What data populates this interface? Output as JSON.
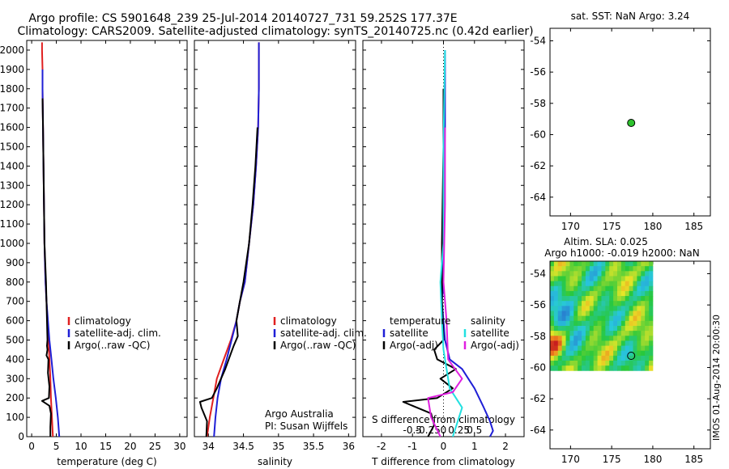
{
  "title": {
    "line1": "Argo profile: CS 5901648_239 25-Jul-2014 20140727_731 59.252S 177.37E",
    "line2": "Climatology: CARS2009. Satellite-adjusted climatology: synTS_20140725.nc (0.42d earlier)"
  },
  "side_text": "IMOS 01-Aug-2014 20:00:30",
  "colors": {
    "red": "#e02020",
    "blue": "#1f1fd6",
    "black": "#000000",
    "cyan": "#22e0e0",
    "magenta": "#e020e0",
    "marker": "#2ec22e"
  },
  "chart_data": [
    {
      "id": "temperature",
      "type": "line",
      "xlabel": "temperature (deg C)",
      "ylabel": "",
      "xlim": [
        -1,
        31.5
      ],
      "ylim": [
        2050,
        0
      ],
      "xticks": [
        0,
        5,
        10,
        15,
        20,
        25,
        30
      ],
      "yticks": [
        0,
        100,
        200,
        300,
        400,
        500,
        600,
        700,
        800,
        900,
        1000,
        1100,
        1200,
        1300,
        1400,
        1500,
        1600,
        1700,
        1800,
        1900,
        2000
      ],
      "legend": {
        "position": "lower-middle",
        "entries": [
          "climatology",
          "satellite-adj. clim.",
          "Argo(..raw -QC)"
        ]
      },
      "series": [
        {
          "name": "climatology",
          "color": "red",
          "x": [
            4.3,
            4.1,
            3.9,
            3.8,
            3.6,
            3.4,
            3.2,
            3.0,
            2.8,
            2.7,
            2.6,
            2.5,
            2.4,
            2.3,
            2.2,
            2.2,
            2.1,
            2.1
          ],
          "y": [
            0,
            100,
            200,
            300,
            400,
            500,
            600,
            700,
            800,
            900,
            1000,
            1200,
            1400,
            1600,
            1800,
            1900,
            2000,
            2040
          ]
        },
        {
          "name": "satellite-adj. clim.",
          "color": "blue",
          "x": [
            5.6,
            5.3,
            4.9,
            4.4,
            4.0,
            3.6,
            3.3,
            3.0,
            2.8,
            2.7,
            2.6,
            2.5,
            2.4,
            2.3,
            2.2,
            2.2
          ],
          "y": [
            0,
            100,
            200,
            300,
            400,
            500,
            600,
            700,
            800,
            900,
            1000,
            1200,
            1400,
            1600,
            1800,
            1900
          ]
        },
        {
          "name": "Argo(..raw -QC)",
          "color": "black",
          "x": [
            3.8,
            3.8,
            3.9,
            3.6,
            2.1,
            3.5,
            3.6,
            3.3,
            3.4,
            3.0,
            3.2,
            3.1,
            3.2,
            3.1,
            3.0,
            2.9,
            2.6,
            2.5,
            2.4,
            2.3,
            2.2
          ],
          "y": [
            0,
            50,
            120,
            160,
            185,
            200,
            260,
            330,
            400,
            420,
            450,
            470,
            500,
            600,
            700,
            800,
            1000,
            1200,
            1400,
            1600,
            1750
          ]
        }
      ]
    },
    {
      "id": "salinity",
      "type": "line",
      "xlabel": "salinity",
      "ylabel": "",
      "xlim": [
        33.8,
        36.1
      ],
      "ylim": [
        2050,
        0
      ],
      "xticks": [
        34,
        34.5,
        35,
        35.5,
        36
      ],
      "xticklabels": [
        "34",
        "34.5",
        "35",
        "35.5",
        "36"
      ],
      "legend": {
        "position": "lower-middle",
        "entries": [
          "climatology",
          "satellite-adj. clim.",
          "Argo(..raw -QC)"
        ]
      },
      "annotation": [
        "Argo Australia",
        "PI: Susan Wijffels"
      ],
      "series": [
        {
          "name": "climatology",
          "color": "red",
          "x": [
            33.98,
            34.02,
            34.07,
            34.12,
            34.22,
            34.32,
            34.4,
            34.45,
            34.52,
            34.58,
            34.64,
            34.68,
            34.71,
            34.72,
            34.72
          ],
          "y": [
            0,
            100,
            200,
            300,
            400,
            500,
            600,
            700,
            800,
            1000,
            1200,
            1400,
            1600,
            1800,
            2040
          ]
        },
        {
          "name": "satellite-adj. clim.",
          "color": "blue",
          "x": [
            34.08,
            34.1,
            34.13,
            34.18,
            34.26,
            34.33,
            34.4,
            34.45,
            34.52,
            34.58,
            34.64,
            34.68,
            34.71,
            34.72,
            34.72
          ],
          "y": [
            0,
            100,
            200,
            300,
            400,
            500,
            600,
            700,
            800,
            1000,
            1200,
            1400,
            1600,
            1800,
            2040
          ]
        },
        {
          "name": "Argo(..raw -QC)",
          "color": "black",
          "x": [
            33.97,
            33.98,
            33.9,
            33.88,
            34.05,
            34.12,
            34.24,
            34.32,
            34.36,
            34.42,
            34.4,
            34.45,
            34.5,
            34.58,
            34.63,
            34.67,
            34.7
          ],
          "y": [
            0,
            80,
            150,
            180,
            200,
            250,
            350,
            430,
            470,
            520,
            600,
            700,
            800,
            1000,
            1200,
            1400,
            1600
          ]
        }
      ]
    },
    {
      "id": "differences",
      "type": "line",
      "xlabel": "T difference from climatology",
      "xlabel_top": "S difference from climatology",
      "ylabel": "",
      "xlim": [
        -2.6,
        2.6
      ],
      "ylim": [
        2050,
        0
      ],
      "xticks": [
        -2,
        -1,
        0,
        1,
        2
      ],
      "xticklabels_top": [
        "-0.5",
        "-0.25",
        "0",
        "0.25",
        "0.5"
      ],
      "legend": {
        "position": "lower-middle",
        "headers": [
          "temperature",
          "salinity"
        ],
        "entries": [
          "satellite",
          "Argo(-adj)",
          "satellite",
          "Argo(-adj)"
        ]
      },
      "series": [
        {
          "name": "temperature satellite",
          "color": "blue",
          "x": [
            1.5,
            1.6,
            1.5,
            1.3,
            1.0,
            0.6,
            0.2,
            0.05,
            0.0,
            -0.05,
            0.0,
            0.0,
            0.05,
            0.05
          ],
          "y": [
            0,
            30,
            80,
            150,
            250,
            350,
            400,
            500,
            600,
            700,
            800,
            1200,
            1600,
            2000
          ]
        },
        {
          "name": "temperature Argo(-adj)",
          "color": "black",
          "x": [
            -0.5,
            -0.3,
            -0.4,
            -1.3,
            -0.2,
            0.3,
            -0.1,
            0.4,
            -0.2,
            -0.3,
            0.0,
            -0.05,
            -0.05,
            0.0,
            0.0
          ],
          "y": [
            0,
            60,
            120,
            180,
            200,
            250,
            300,
            350,
            400,
            450,
            500,
            700,
            1000,
            1500,
            1800
          ]
        },
        {
          "name": "salinity satellite",
          "color": "cyan",
          "x": [
            0.3,
            0.6,
            0.2,
            0.1,
            0.0,
            -0.05,
            -0.1,
            0.0,
            0.0,
            0.05
          ],
          "y": [
            0,
            150,
            250,
            350,
            450,
            600,
            800,
            1000,
            1500,
            2000
          ]
        },
        {
          "name": "salinity Argo(-adj)",
          "color": "magenta",
          "x": [
            -0.1,
            -0.4,
            -0.5,
            0.3,
            0.6,
            0.15,
            0.1,
            0.0,
            0.05,
            0.05
          ],
          "y": [
            0,
            100,
            200,
            230,
            300,
            400,
            600,
            800,
            1200,
            1600
          ]
        }
      ]
    },
    {
      "id": "sst-map",
      "type": "scatter",
      "title": "sat. SST: NaN Argo: 3.24",
      "xlim": [
        167.5,
        187
      ],
      "ylim": [
        -65.2,
        -53.2
      ],
      "xticks": [
        170,
        175,
        180,
        185
      ],
      "yticks": [
        -54,
        -56,
        -58,
        -60,
        -62,
        -64
      ],
      "points": [
        {
          "x": 177.37,
          "y": -59.252,
          "color": "marker"
        }
      ]
    },
    {
      "id": "sla-map",
      "type": "heatmap",
      "title_line1": "Altim. SLA: 0.025",
      "title_line2": "Argo h1000: -0.019 h2000: NaN",
      "xlim": [
        167.5,
        187
      ],
      "ylim": [
        -65.2,
        -53.2
      ],
      "xticks": [
        170,
        175,
        180,
        185
      ],
      "yticks": [
        -54,
        -56,
        -58,
        -60,
        -62,
        -64
      ],
      "extent": {
        "lon": [
          167.5,
          180
        ],
        "lat": [
          -60.2,
          -53.2
        ]
      },
      "points": [
        {
          "x": 177.37,
          "y": -59.252
        }
      ]
    }
  ]
}
